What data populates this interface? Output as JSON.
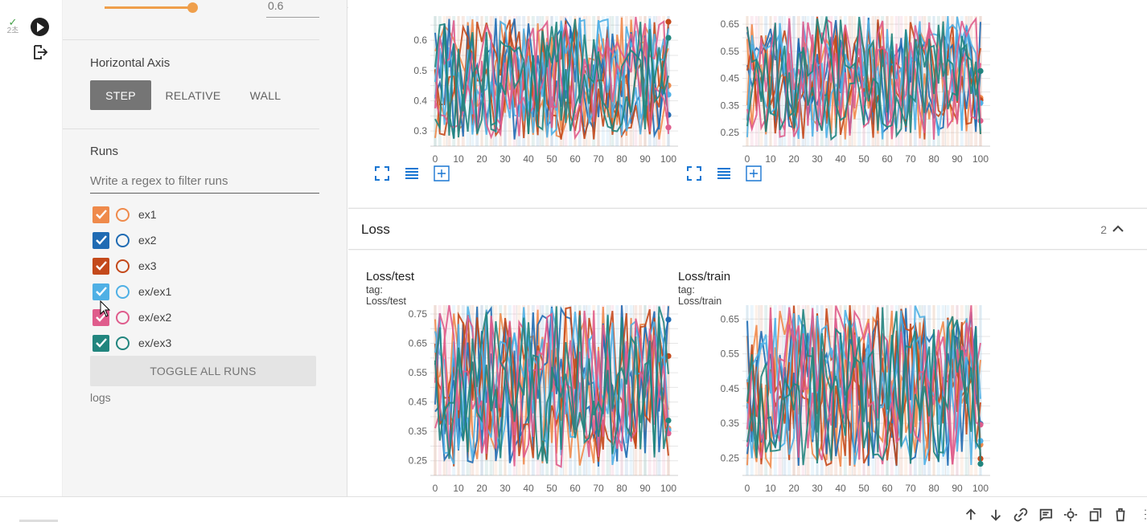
{
  "cell": {
    "status": "2초"
  },
  "sidebar": {
    "smoothing_value": "0.6",
    "horizontal_axis": {
      "title": "Horizontal Axis",
      "options": [
        "STEP",
        "RELATIVE",
        "WALL"
      ],
      "selected": "STEP"
    },
    "runs": {
      "title": "Runs",
      "filter_placeholder": "Write a regex to filter runs",
      "items": [
        {
          "name": "ex1",
          "color": "#ef8a4b"
        },
        {
          "name": "ex2",
          "color": "#1f6bb3"
        },
        {
          "name": "ex3",
          "color": "#c4491b"
        },
        {
          "name": "ex/ex1",
          "color": "#4fb0e5"
        },
        {
          "name": "ex/ex2",
          "color": "#df5c8c"
        },
        {
          "name": "ex/ex3",
          "color": "#21857e"
        }
      ],
      "toggle_all_label": "TOGGLE ALL RUNS",
      "logdir": "logs"
    }
  },
  "loss_section": {
    "title": "Loss",
    "count": "2"
  },
  "chart_data": [
    {
      "type": "line",
      "title": "",
      "section": "upper",
      "x_ticks": [
        0,
        10,
        20,
        30,
        40,
        50,
        60,
        70,
        80,
        90,
        100
      ],
      "y_ticks": [
        0.3,
        0.4,
        0.5,
        0.6
      ],
      "y_tick_labels": [
        "0.3",
        "0.4",
        "0.5",
        "0.6"
      ],
      "xlim": [
        0,
        100
      ],
      "ylim": [
        0.25,
        0.68
      ]
    },
    {
      "type": "line",
      "title": "",
      "section": "upper",
      "x_ticks": [
        0,
        10,
        20,
        30,
        40,
        50,
        60,
        70,
        80,
        90,
        100
      ],
      "y_ticks": [
        0.25,
        0.35,
        0.45,
        0.55,
        0.65
      ],
      "y_tick_labels": [
        "0.25",
        "0.35",
        "0.45",
        "0.55",
        "0.65"
      ],
      "xlim": [
        0,
        100
      ],
      "ylim": [
        0.2,
        0.68
      ]
    },
    {
      "type": "line",
      "title": "Loss/test",
      "tag": "tag: Loss/test",
      "x_ticks": [
        0,
        10,
        20,
        30,
        40,
        50,
        60,
        70,
        80,
        90,
        100
      ],
      "y_ticks": [
        0.25,
        0.35,
        0.45,
        0.55,
        0.65,
        0.75
      ],
      "y_tick_labels": [
        "0.25",
        "0.35",
        "0.45",
        "0.55",
        "0.65",
        "0.75"
      ],
      "xlim": [
        0,
        100
      ],
      "ylim": [
        0.2,
        0.78
      ]
    },
    {
      "type": "line",
      "title": "Loss/train",
      "tag": "tag: Loss/train",
      "x_ticks": [
        0,
        10,
        20,
        30,
        40,
        50,
        60,
        70,
        80,
        90,
        100
      ],
      "y_ticks": [
        0.25,
        0.35,
        0.45,
        0.55,
        0.65
      ],
      "y_tick_labels": [
        "0.25",
        "0.35",
        "0.45",
        "0.55",
        "0.65"
      ],
      "xlim": [
        0,
        100
      ],
      "ylim": [
        0.2,
        0.69
      ]
    }
  ],
  "icons": {
    "chart_tools": [
      "fullscreen-icon",
      "data-table-icon",
      "fit-domain-icon"
    ],
    "cell_tools": [
      "move-up-icon",
      "move-down-icon",
      "link-icon",
      "comment-icon",
      "settings-icon",
      "mirror-cell-icon",
      "delete-icon",
      "more-icon"
    ]
  }
}
